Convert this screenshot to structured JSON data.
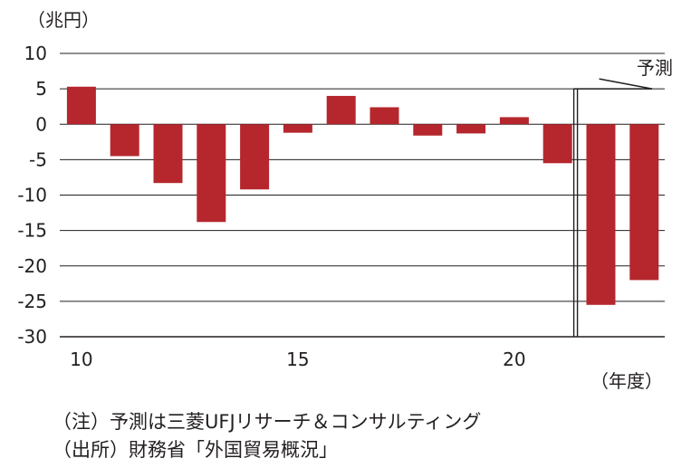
{
  "chart_data": {
    "type": "bar",
    "unit_label": "（兆円）",
    "xlabel": "（年度）",
    "x": [
      10,
      11,
      12,
      13,
      14,
      15,
      16,
      17,
      18,
      19,
      20,
      21,
      22,
      23
    ],
    "values": [
      5.3,
      -4.5,
      -8.3,
      -13.8,
      -9.2,
      -1.2,
      4.0,
      2.4,
      -1.6,
      -1.3,
      1.0,
      -5.5,
      -25.5,
      -22.0
    ],
    "x_tick_labels": [
      {
        "x": 10,
        "label": "10"
      },
      {
        "x": 15,
        "label": "15"
      },
      {
        "x": 20,
        "label": "20"
      }
    ],
    "y_ticks": [
      10,
      5,
      0,
      -5,
      -10,
      -15,
      -20,
      -25,
      -30
    ],
    "y_tick_labels": [
      "10",
      "5",
      "0",
      "-5",
      "-10",
      "-15",
      "-20",
      "-25",
      "-30"
    ],
    "ylim": [
      -30,
      10
    ],
    "grid": true,
    "forecast": {
      "label": "予測",
      "from_x": 22,
      "to_x": 23
    },
    "colors": {
      "bar": "#b5272d",
      "grid": "#231f20"
    }
  },
  "notes": {
    "note1": "（注）予測は三菱UFJリサーチ＆コンサルティング",
    "note2": "（出所）財務省「外国貿易概況」"
  }
}
